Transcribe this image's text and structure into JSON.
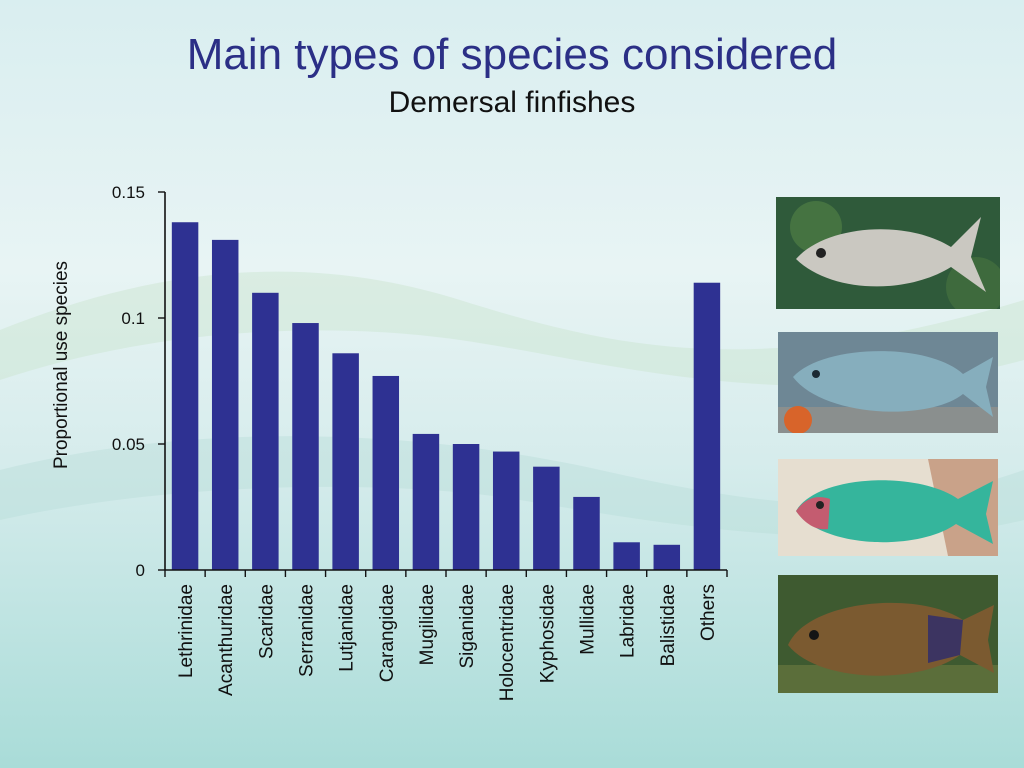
{
  "slide": {
    "title": "Main types of species considered",
    "subtitle": "Demersal finfishes"
  },
  "chart_data": {
    "type": "bar",
    "ylabel": "Proportional use species",
    "xlabel": "",
    "ylim": [
      0,
      0.15
    ],
    "yticks": [
      "0",
      "0.05",
      "0.1",
      "0.15"
    ],
    "yticks_values": [
      0,
      0.05,
      0.1,
      0.15
    ],
    "categories": [
      "Lethrinidae",
      "Acanthuridae",
      "Scaridae",
      "Serranidae",
      "Lutjanidae",
      "Carangidae",
      "Mugilidae",
      "Siganidae",
      "Holocentridae",
      "Kyphosidae",
      "Mullidae",
      "Labridae",
      "Balistidae",
      "Others"
    ],
    "values": [
      0.138,
      0.131,
      0.11,
      0.098,
      0.086,
      0.077,
      0.054,
      0.05,
      0.047,
      0.041,
      0.029,
      0.011,
      0.01,
      0.114
    ],
    "bar_color": "#2e3192",
    "grid": false,
    "legend": "none"
  },
  "photos": [
    {
      "name": "emperor-fish-photo",
      "bg": "#2f5a3a",
      "body": "#c9c7c0",
      "accent": "#8fa0a8"
    },
    {
      "name": "unicornfish-photo",
      "bg": "#5b7a8c",
      "body": "#7fa7b7",
      "accent": "#e07a2e"
    },
    {
      "name": "parrotfish-photo",
      "bg": "#e9e1d2",
      "body": "#34b59a",
      "accent": "#c25a6a"
    },
    {
      "name": "grouper-photo",
      "bg": "#3c5a2e",
      "body": "#7a5a2e",
      "accent": "#2f2a6e"
    }
  ]
}
